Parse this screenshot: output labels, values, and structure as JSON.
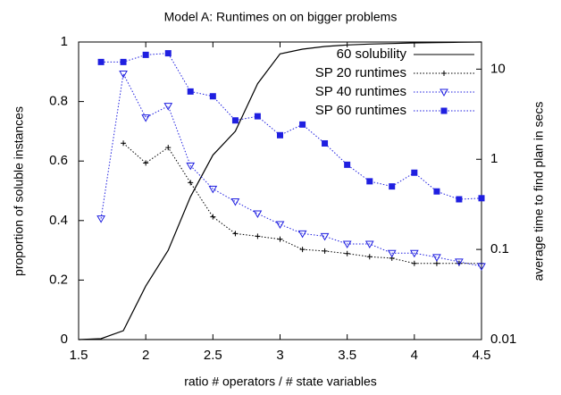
{
  "chart_data": {
    "type": "line",
    "title": "Model A: Runtimes on on bigger problems",
    "x_label": "ratio # operators / # state variables",
    "y_label": "proportion of soluble instances",
    "y2_label": "average time to find plan in secs",
    "x": [
      1.5,
      1.667,
      1.833,
      2.0,
      2.167,
      2.333,
      2.5,
      2.667,
      2.833,
      3.0,
      3.167,
      3.333,
      3.5,
      3.667,
      3.833,
      4.0,
      4.167,
      4.333,
      4.5
    ],
    "xlim": [
      1.5,
      4.5
    ],
    "xticks": [
      1.5,
      2,
      2.5,
      3,
      3.5,
      4,
      4.5
    ],
    "ylim": [
      0,
      1
    ],
    "yticks": [
      0,
      0.2,
      0.4,
      0.6,
      0.8,
      1
    ],
    "y2lim": [
      0.01,
      20
    ],
    "y2scale": "log",
    "y2ticks": [
      0.01,
      0.1,
      1,
      10
    ],
    "legend": "top-right",
    "series": [
      {
        "name": "60 solubility",
        "color": "#000000",
        "marker": "none",
        "line_style": "solid",
        "axis": "y",
        "values": [
          0,
          0.003,
          0.03,
          0.18,
          0.3,
          0.48,
          0.62,
          0.7,
          0.86,
          0.96,
          0.976,
          0.985,
          0.99,
          0.993,
          0.995,
          0.997,
          0.998,
          0.999,
          1
        ]
      },
      {
        "name": "SP 20 runtimes",
        "color": "#000000",
        "marker": "plus",
        "line_style": "dotted",
        "axis": "y2",
        "values": [
          null,
          null,
          1.51,
          0.91,
          1.35,
          0.55,
          0.23,
          0.15,
          0.14,
          0.13,
          0.1,
          0.096,
          0.09,
          0.083,
          0.08,
          0.07,
          0.07,
          0.07,
          0.07
        ]
      },
      {
        "name": "SP 40 runtimes",
        "color": "#1f1fe0",
        "marker": "triangle-down",
        "line_style": "dotted",
        "axis": "y2",
        "values": [
          null,
          0.22,
          8.9,
          2.9,
          3.9,
          0.85,
          0.47,
          0.34,
          0.25,
          0.19,
          0.15,
          0.14,
          0.115,
          0.115,
          0.091,
          0.091,
          0.082,
          0.073,
          0.065
        ]
      },
      {
        "name": "SP 60 runtimes",
        "color": "#1f1fe0",
        "marker": "square",
        "line_style": "dotted",
        "axis": "y2",
        "values": [
          null,
          12,
          12,
          14.4,
          15,
          5.65,
          5.0,
          2.7,
          3.0,
          1.85,
          2.43,
          1.5,
          0.87,
          0.57,
          0.5,
          0.71,
          0.44,
          0.36,
          0.37
        ]
      }
    ]
  }
}
